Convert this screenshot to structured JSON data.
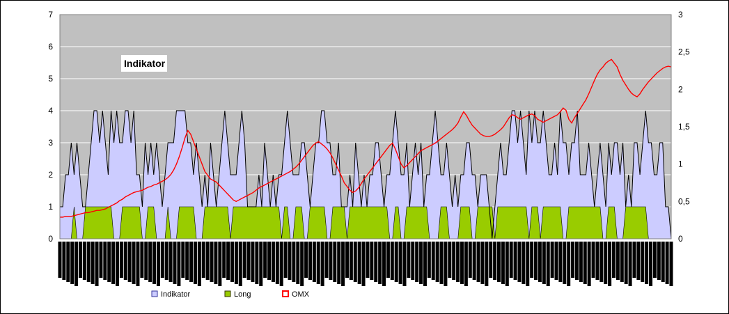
{
  "chart_data": {
    "type": "area",
    "title": "Indikator",
    "xlabel": "",
    "ylabel": "",
    "ylim_left": [
      0,
      7
    ],
    "ylim_right": [
      0,
      3
    ],
    "y_ticks_left": [
      "0",
      "1",
      "2",
      "3",
      "4",
      "5",
      "6",
      "7"
    ],
    "y_ticks_right": [
      "0",
      "0,5",
      "1",
      "1,5",
      "2",
      "2,5",
      "3"
    ],
    "grid": true,
    "legend_position": "bottom",
    "colors": {
      "plot_bg": "#c0c0c0",
      "indikator_fill": "#ccccff",
      "indikator_line": "#000000",
      "long_fill": "#99cc00",
      "omx_line": "#ff0000"
    },
    "legend": [
      "Indikator",
      "Long",
      "OMX"
    ],
    "series": [
      {
        "name": "Indikator",
        "axis": "left",
        "values": [
          1,
          1,
          2,
          2,
          3,
          2,
          3,
          2,
          1,
          1,
          2,
          3,
          4,
          4,
          3,
          4,
          3,
          2,
          4,
          3,
          4,
          3,
          3,
          4,
          4,
          3,
          4,
          2,
          2,
          1,
          3,
          2,
          3,
          2,
          3,
          2,
          1,
          2,
          3,
          3,
          3,
          4,
          4,
          4,
          4,
          3,
          3,
          2,
          3,
          2,
          1,
          2,
          1,
          3,
          2,
          1,
          2,
          3,
          4,
          3,
          2,
          2,
          2,
          3,
          4,
          3,
          1,
          1,
          1,
          1,
          2,
          1,
          3,
          2,
          1,
          2,
          1,
          2,
          2,
          3,
          4,
          3,
          2,
          2,
          2,
          3,
          3,
          2,
          1,
          2,
          3,
          3,
          4,
          4,
          3,
          3,
          2,
          2,
          3,
          1,
          1,
          1,
          2,
          1,
          3,
          2,
          1,
          2,
          1,
          2,
          2,
          3,
          3,
          2,
          1,
          2,
          2,
          3,
          4,
          3,
          2,
          2,
          3,
          1,
          2,
          3,
          2,
          3,
          1,
          2,
          2,
          3,
          4,
          3,
          2,
          2,
          3,
          2,
          1,
          2,
          1,
          2,
          2,
          3,
          3,
          2,
          2,
          1,
          2,
          2,
          2,
          1,
          0,
          1,
          2,
          3,
          2,
          2,
          3,
          4,
          4,
          3,
          4,
          3,
          2,
          4,
          3,
          4,
          3,
          3,
          4,
          3,
          2,
          2,
          3,
          2,
          4,
          3,
          3,
          2,
          3,
          3,
          4,
          2,
          2,
          2,
          3,
          2,
          1,
          2,
          3,
          2,
          1,
          3,
          2,
          3,
          3,
          2,
          3,
          1,
          2,
          1,
          3,
          3,
          2,
          3,
          4,
          3,
          3,
          2,
          2,
          3,
          3,
          1,
          1,
          0
        ]
      },
      {
        "name": "Long",
        "axis": "left",
        "values": [
          0,
          0,
          0,
          0,
          0,
          1,
          0,
          0,
          0,
          1,
          1,
          1,
          1,
          1,
          1,
          1,
          1,
          1,
          1,
          0,
          0,
          0,
          1,
          1,
          1,
          1,
          1,
          1,
          1,
          0,
          0,
          1,
          1,
          1,
          0,
          0,
          0,
          0,
          1,
          0,
          0,
          0,
          1,
          1,
          1,
          1,
          1,
          1,
          0,
          0,
          0,
          1,
          1,
          1,
          1,
          1,
          1,
          1,
          1,
          1,
          0,
          1,
          1,
          1,
          1,
          1,
          1,
          1,
          1,
          1,
          1,
          1,
          1,
          1,
          1,
          1,
          1,
          1,
          0,
          1,
          1,
          0,
          0,
          1,
          1,
          1,
          0,
          0,
          1,
          1,
          1,
          1,
          1,
          1,
          0,
          0,
          1,
          1,
          1,
          1,
          1,
          0,
          1,
          1,
          1,
          1,
          1,
          1,
          1,
          1,
          1,
          1,
          1,
          1,
          1,
          1,
          0,
          0,
          1,
          1,
          0,
          0,
          1,
          1,
          1,
          1,
          1,
          1,
          1,
          1,
          0,
          0,
          0,
          0,
          1,
          1,
          1,
          0,
          0,
          0,
          0,
          1,
          1,
          1,
          1,
          0,
          0,
          1,
          1,
          1,
          1,
          1,
          1,
          0,
          1,
          1,
          1,
          1,
          1,
          1,
          1,
          1,
          1,
          1,
          1,
          0,
          1,
          1,
          1,
          0,
          1,
          1,
          1,
          1,
          1,
          1,
          1,
          0,
          0,
          1,
          1,
          1,
          1,
          1,
          1,
          1,
          1,
          1,
          1,
          1,
          1,
          0,
          0,
          1,
          1,
          1,
          0,
          0,
          0,
          1,
          1,
          1,
          1,
          1,
          1,
          1,
          1,
          0,
          0,
          0,
          0
        ]
      },
      {
        "name": "OMX",
        "axis": "right",
        "values": [
          0.29,
          0.29,
          0.3,
          0.3,
          0.3,
          0.31,
          0.32,
          0.33,
          0.34,
          0.35,
          0.35,
          0.36,
          0.37,
          0.38,
          0.38,
          0.39,
          0.4,
          0.42,
          0.44,
          0.46,
          0.48,
          0.51,
          0.53,
          0.56,
          0.58,
          0.6,
          0.62,
          0.63,
          0.64,
          0.65,
          0.67,
          0.69,
          0.7,
          0.72,
          0.73,
          0.75,
          0.77,
          0.79,
          0.82,
          0.86,
          0.92,
          1.0,
          1.1,
          1.22,
          1.35,
          1.45,
          1.4,
          1.3,
          1.2,
          1.1,
          1.0,
          0.9,
          0.85,
          0.8,
          0.78,
          0.76,
          0.72,
          0.68,
          0.64,
          0.6,
          0.56,
          0.52,
          0.5,
          0.52,
          0.54,
          0.56,
          0.58,
          0.6,
          0.62,
          0.65,
          0.68,
          0.7,
          0.72,
          0.74,
          0.76,
          0.78,
          0.8,
          0.82,
          0.84,
          0.86,
          0.88,
          0.9,
          0.93,
          0.96,
          1.0,
          1.05,
          1.1,
          1.15,
          1.2,
          1.25,
          1.28,
          1.3,
          1.27,
          1.24,
          1.2,
          1.15,
          1.08,
          1.0,
          0.92,
          0.84,
          0.75,
          0.7,
          0.65,
          0.62,
          0.64,
          0.68,
          0.74,
          0.8,
          0.85,
          0.9,
          0.95,
          1.0,
          1.05,
          1.1,
          1.15,
          1.2,
          1.25,
          1.28,
          1.2,
          1.1,
          1.0,
          0.95,
          0.98,
          1.02,
          1.06,
          1.1,
          1.14,
          1.18,
          1.2,
          1.22,
          1.24,
          1.26,
          1.28,
          1.31,
          1.34,
          1.37,
          1.4,
          1.43,
          1.46,
          1.5,
          1.55,
          1.63,
          1.7,
          1.65,
          1.58,
          1.52,
          1.48,
          1.44,
          1.4,
          1.38,
          1.37,
          1.37,
          1.38,
          1.4,
          1.43,
          1.46,
          1.5,
          1.56,
          1.62,
          1.66,
          1.65,
          1.62,
          1.6,
          1.62,
          1.64,
          1.66,
          1.67,
          1.65,
          1.6,
          1.58,
          1.56,
          1.58,
          1.6,
          1.62,
          1.64,
          1.66,
          1.7,
          1.75,
          1.72,
          1.6,
          1.55,
          1.62,
          1.68,
          1.74,
          1.8,
          1.86,
          1.94,
          2.03,
          2.12,
          2.2,
          2.26,
          2.3,
          2.35,
          2.38,
          2.4,
          2.35,
          2.3,
          2.2,
          2.12,
          2.06,
          2.0,
          1.95,
          1.92,
          1.9,
          1.94,
          2.0,
          2.05,
          2.1,
          2.14,
          2.18,
          2.22,
          2.25,
          2.28,
          2.3,
          2.31,
          2.3
        ]
      }
    ]
  }
}
